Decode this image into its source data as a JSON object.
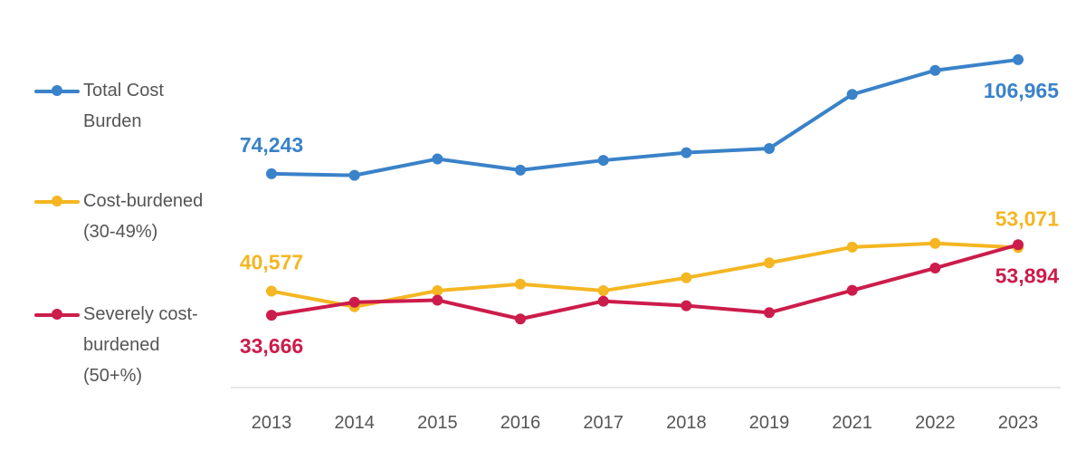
{
  "chart_data": {
    "type": "line",
    "categories": [
      "2013",
      "2014",
      "2015",
      "2016",
      "2017",
      "2018",
      "2019",
      "2021",
      "2022",
      "2023"
    ],
    "ylim": [
      15000,
      115000
    ],
    "grid": false,
    "legend_position": "left",
    "series": [
      {
        "name_lines": [
          "Total Cost",
          "Burden"
        ],
        "color": "#3a82c9",
        "values": [
          74243,
          73800,
          78500,
          75300,
          78100,
          80300,
          81500,
          97000,
          103900,
          106965
        ],
        "labels": [
          {
            "index": 0,
            "text": "74,243",
            "pos": "above"
          },
          {
            "index": 9,
            "text": "106,965",
            "pos": "below"
          }
        ]
      },
      {
        "name_lines": [
          "Cost-burdened",
          "(30-49%)"
        ],
        "color": "#f4b622",
        "values": [
          40577,
          36100,
          40700,
          42600,
          40700,
          44400,
          48700,
          53200,
          54300,
          53071
        ],
        "labels": [
          {
            "index": 0,
            "text": "40,577",
            "pos": "above"
          },
          {
            "index": 9,
            "text": "53,071",
            "pos": "above"
          }
        ]
      },
      {
        "name_lines": [
          "Severely cost-",
          "burdened",
          "(50+%)"
        ],
        "color": "#cc1c4b",
        "values": [
          33666,
          37400,
          38000,
          32600,
          37700,
          36400,
          34400,
          40800,
          47200,
          53894
        ],
        "labels": [
          {
            "index": 0,
            "text": "33,666",
            "pos": "below"
          },
          {
            "index": 9,
            "text": "53,894",
            "pos": "below"
          }
        ]
      }
    ]
  }
}
